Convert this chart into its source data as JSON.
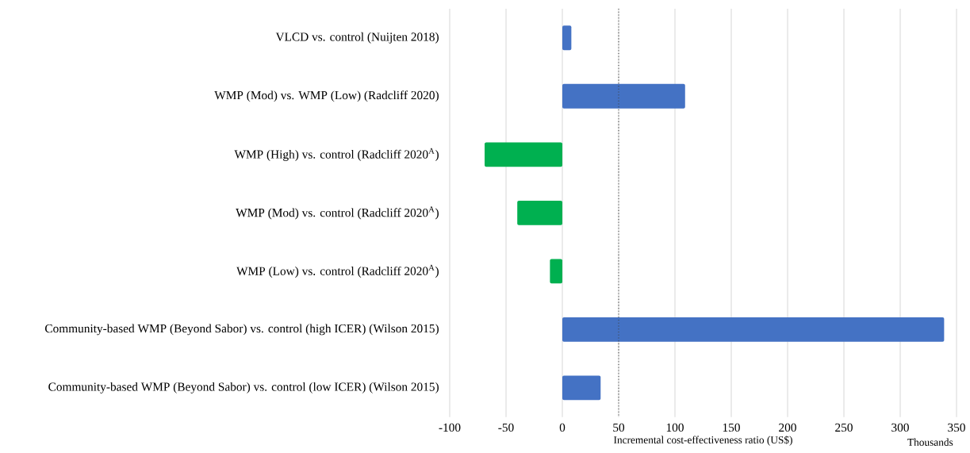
{
  "chart_data": {
    "type": "bar",
    "orientation": "horizontal",
    "categories": [
      "VLCD vs. control (Nuijten 2018)",
      "WMP (Mod)  vs. WMP (Low)  (Radcliff 2020)",
      "WMP (High) vs. control (Radcliff 2020$^{A}$)",
      "WMP (Mod)  vs. control (Radcliff 2020$^{A}$)",
      "WMP (Low)  vs. control (Radcliff 2020$^{A}$)",
      "Community-based WMP (Beyond Sabor)  vs. control (high ICER) (Wilson 2015)",
      "Community-based WMP (Beyond Sabor)  vs. control (low ICER) (Wilson 2015)"
    ],
    "values": [
      8,
      109,
      -69,
      -40,
      -11,
      339,
      34
    ],
    "colors": [
      "#4472c4",
      "#4472c4",
      "#00b050",
      "#00b050",
      "#00b050",
      "#4472c4",
      "#4472c4"
    ],
    "xlim": [
      -100,
      350
    ],
    "xticks": [
      -100,
      -50,
      0,
      50,
      100,
      150,
      200,
      250,
      300,
      350
    ],
    "xlabel": "Incremental  cost-effectiveness  ratio (US$)",
    "annotations": [
      "Thousands"
    ],
    "ref_lines": [
      {
        "axis": "x",
        "value": 50,
        "line_style": "dotted",
        "color": "#404040"
      }
    ],
    "grid": "x"
  }
}
